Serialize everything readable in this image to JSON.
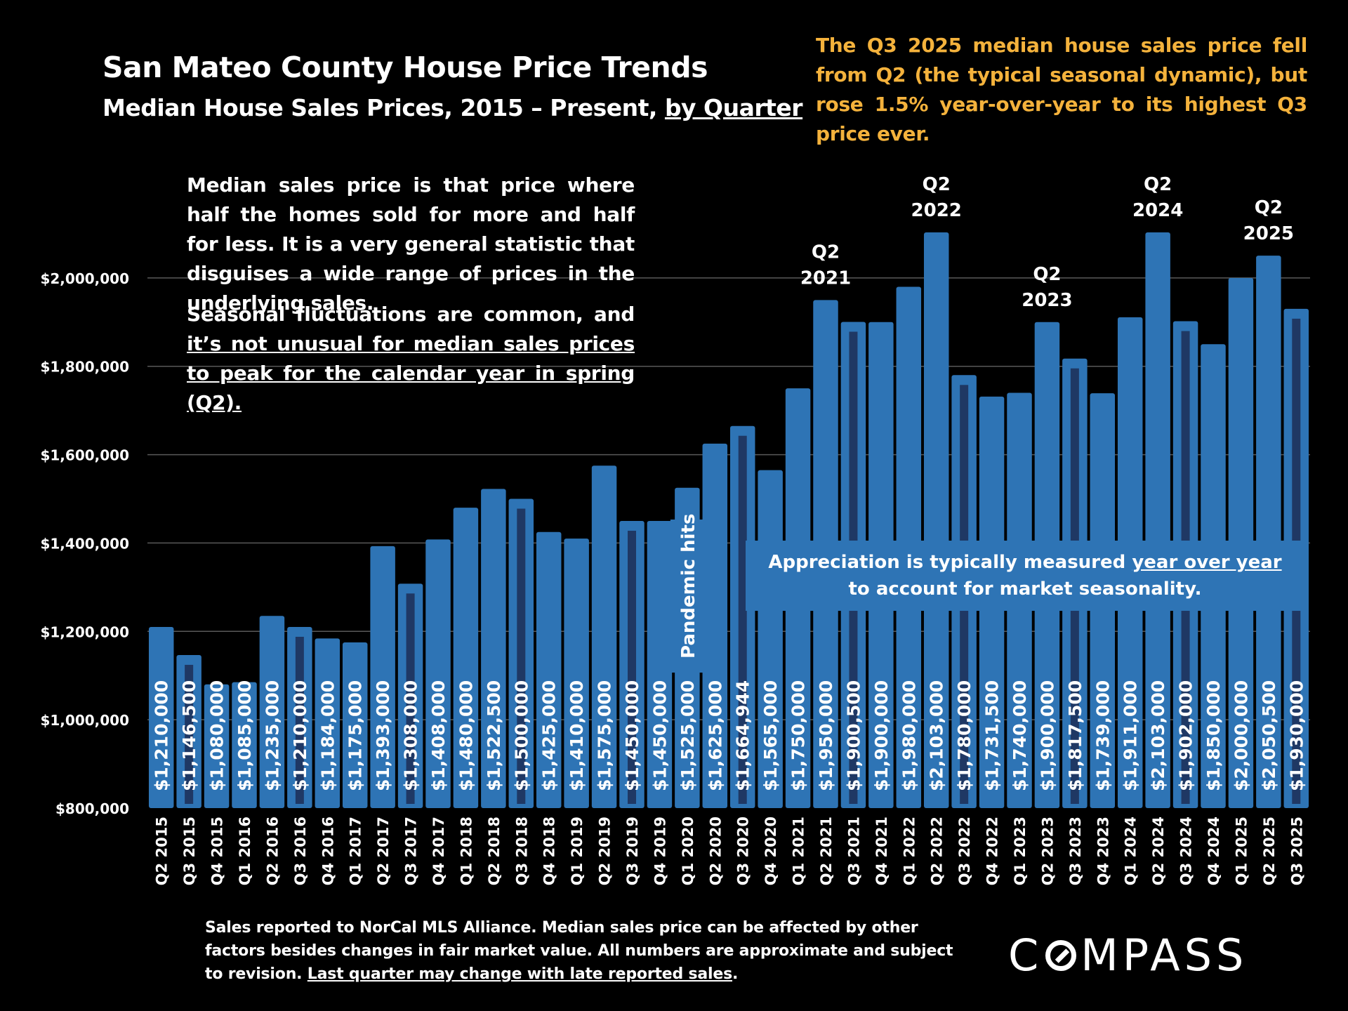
{
  "title": "San Mateo County House Price Trends",
  "subtitle_main": "Median House Sales Prices, 2015 – Present,",
  "subtitle_link": "by Quarter",
  "headline": "The Q3 2025 median house sales price fell from Q2 (the typical seasonal dynamic), but rose 1.5% year-over-year to its highest Q3 price ever.",
  "note_definition": "Median sales price is that price where half the homes sold for more and half for less. It is a very general statistic that disguises a wide range of prices in the underlying sales.",
  "note_seasonal_plain": "Seasonal fluctuations are common, and",
  "note_seasonal_underlined": "it’s not unusual for median sales prices to peak for the calendar year in spring (Q2).",
  "yoy_note_plain": "Appreciation is typically measured",
  "yoy_note_underlined": "year over year",
  "yoy_note_line2": "to account for market seasonality.",
  "pandemic_note": "Pandemic hits",
  "footnote_plain": "Sales reported to NorCal MLS Alliance. Median sales price can be affected by other factors besides changes in fair market value. All numbers are approximate and subject to revision.",
  "footnote_underlined": "Last quarter may change with late reported sales",
  "footnote_end": ".",
  "logo_left": "C",
  "logo_right": "MPASS",
  "colors": {
    "bar": "#2e74b5",
    "q3_marker": "#1f3864",
    "headline": "#f4b23c",
    "background": "#000000",
    "grid": "#595959"
  },
  "chart_data": {
    "type": "bar",
    "categories": [
      "Q2 2015",
      "Q3 2015",
      "Q4 2015",
      "Q1 2016",
      "Q2 2016",
      "Q3 2016",
      "Q4 2016",
      "Q1 2017",
      "Q2 2017",
      "Q3 2017",
      "Q4 2017",
      "Q1 2018",
      "Q2 2018",
      "Q3 2018",
      "Q4 2018",
      "Q1 2019",
      "Q2 2019",
      "Q3 2019",
      "Q4 2019",
      "Q1 2020",
      "Q2 2020",
      "Q3 2020",
      "Q4 2020",
      "Q1 2021",
      "Q2 2021",
      "Q3 2021",
      "Q4 2021",
      "Q1 2022",
      "Q2 2022",
      "Q3 2022",
      "Q4 2022",
      "Q1 2023",
      "Q2 2023",
      "Q3 2023",
      "Q4 2023",
      "Q1 2024",
      "Q2 2024",
      "Q3 2024",
      "Q4 2024",
      "Q1 2025",
      "Q2 2025",
      "Q3 2025"
    ],
    "values": [
      1210000,
      1146500,
      1080000,
      1085000,
      1235000,
      1210000,
      1184000,
      1175000,
      1393000,
      1308000,
      1408000,
      1480000,
      1522500,
      1500000,
      1425000,
      1410000,
      1575000,
      1450000,
      1450000,
      1525000,
      1625000,
      1664944,
      1565000,
      1750000,
      1950000,
      1900500,
      1900000,
      1980000,
      2103000,
      1780000,
      1731500,
      1740000,
      1900000,
      1817500,
      1739000,
      1911000,
      2103000,
      1902000,
      1850000,
      2000000,
      2050500,
      1930000
    ],
    "value_labels": [
      "$1,210,000",
      "$1,146,500",
      "$1,080,000",
      "$1,085,000",
      "$1,235,000",
      "$1,210,000",
      "$1,184,000",
      "$1,175,000",
      "$1,393,000",
      "$1,308,000",
      "$1,408,000",
      "$1,480,000",
      "$1,522,500",
      "$1,500,000",
      "$1,425,000",
      "$1,410,000",
      "$1,575,000",
      "$1,450,000",
      "$1,450,000",
      "$1,525,000",
      "$1,625,000",
      "$1,664,944",
      "$1,565,000",
      "$1,750,000",
      "$1,950,000",
      "$1,900,500",
      "$1,900,000",
      "$1,980,000",
      "$2,103,000",
      "$1,780,000",
      "$1,731,500",
      "$1,740,000",
      "$1,900,000",
      "$1,817,500",
      "$1,739,000",
      "$1,911,000",
      "$2,103,000",
      "$1,902,000",
      "$1,850,000",
      "$2,000,000",
      "$2,050,500",
      "$1,930,000"
    ],
    "q3_marker_indices": [
      1,
      5,
      9,
      13,
      17,
      21,
      25,
      29,
      33,
      37,
      41
    ],
    "ylim": [
      800000,
      2200000
    ],
    "yticks": [
      800000,
      1000000,
      1200000,
      1400000,
      1600000,
      1800000,
      2000000
    ],
    "ytick_labels": [
      "$800,000",
      "$1,000,000",
      "$1,200,000",
      "$1,400,000",
      "$1,600,000",
      "$1,800,000",
      "$2,000,000"
    ],
    "grid": true,
    "xlabel": "",
    "ylabel": "",
    "annotations": [
      {
        "index": 24,
        "line1": "Q2",
        "line2": "2021"
      },
      {
        "index": 28,
        "line1": "Q2",
        "line2": "2022"
      },
      {
        "index": 32,
        "line1": "Q2",
        "line2": "2023"
      },
      {
        "index": 36,
        "line1": "Q2",
        "line2": "2024"
      },
      {
        "index": 40,
        "line1": "Q2",
        "line2": "2025"
      }
    ]
  }
}
